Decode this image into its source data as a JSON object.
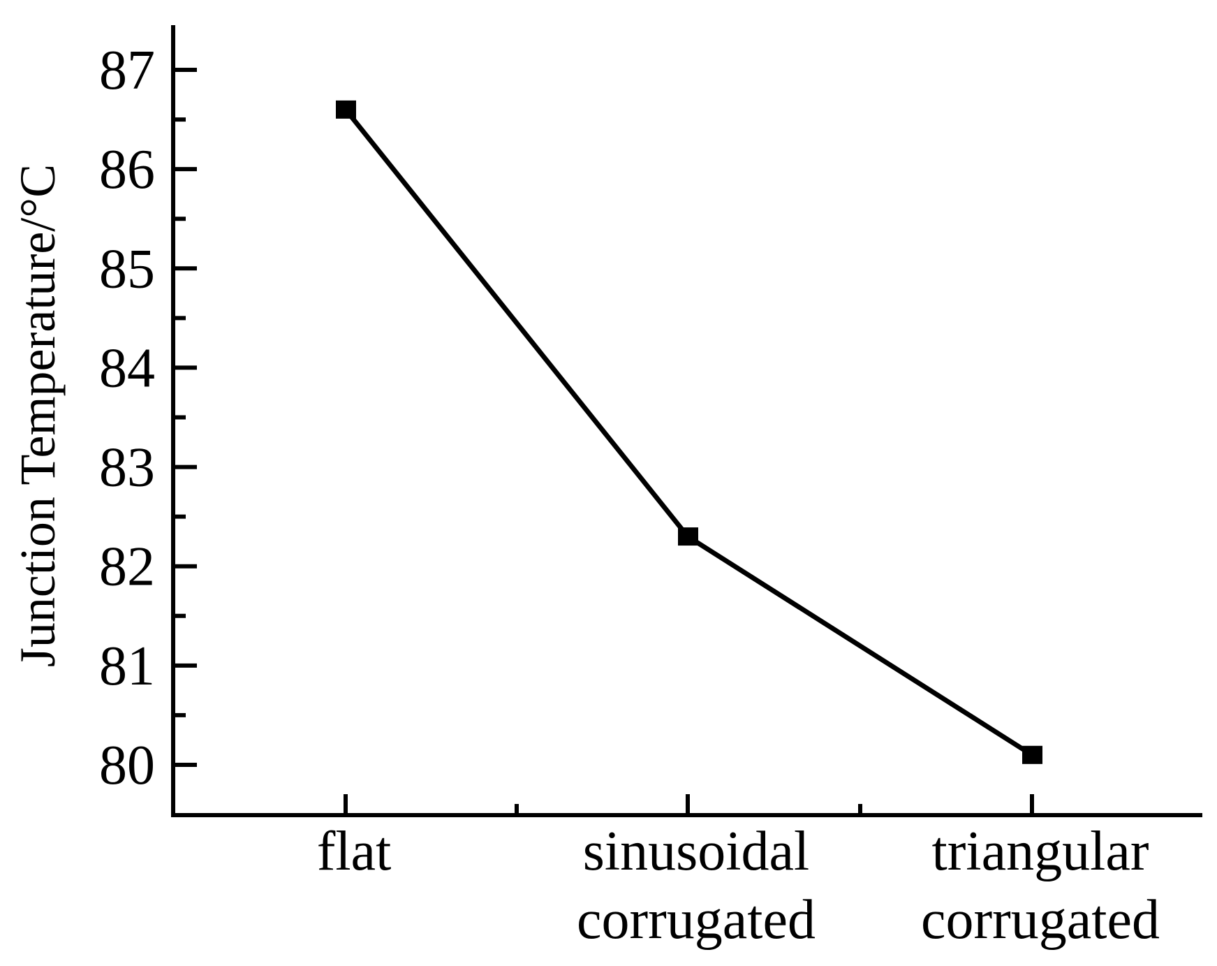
{
  "chart_data": {
    "type": "line",
    "title": "",
    "xlabel": "",
    "ylabel": "Junction Temperature/°C",
    "categories": [
      [
        "flat"
      ],
      [
        "sinusoidal",
        "corrugated"
      ],
      [
        "triangular",
        "corrugated"
      ]
    ],
    "series": [
      {
        "name": "Junction Temperature",
        "values": [
          86.6,
          82.3,
          80.1
        ],
        "marker": "square",
        "color": "#000000"
      }
    ],
    "ylim": [
      79.5,
      87.5
    ],
    "yticks": [
      "80",
      "81",
      "82",
      "83",
      "84",
      "85",
      "86",
      "87"
    ],
    "grid": false,
    "legend": "none"
  }
}
